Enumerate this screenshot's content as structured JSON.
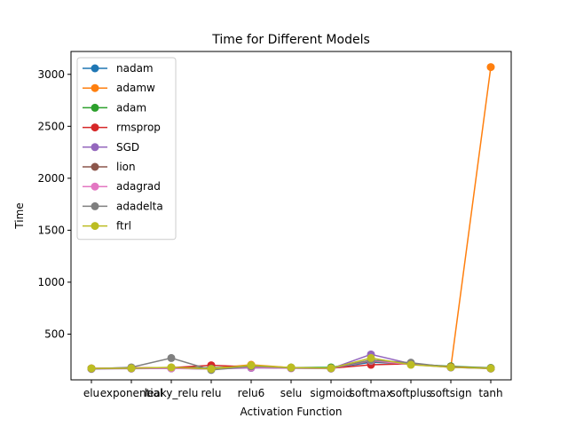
{
  "chart_data": {
    "type": "line",
    "title": "Time for Different Models",
    "xlabel": "Activation Function",
    "ylabel": "Time",
    "categories": [
      "elu",
      "exponential",
      "leaky_relu",
      "relu",
      "relu6",
      "selu",
      "sigmoid",
      "softmax",
      "softplus",
      "softsign",
      "tanh"
    ],
    "ylim": [
      60,
      3220
    ],
    "yticks": [
      500,
      1000,
      1500,
      2000,
      2500,
      3000
    ],
    "grid": false,
    "legend": "top-left",
    "series": [
      {
        "name": "nadam",
        "color": "#1f77b4",
        "values": [
          168,
          170,
          172,
          165,
          180,
          175,
          170,
          230,
          215,
          185,
          170
        ]
      },
      {
        "name": "adamw",
        "color": "#ff7f0e",
        "values": [
          170,
          172,
          175,
          170,
          205,
          178,
          172,
          250,
          210,
          182,
          3070
        ]
      },
      {
        "name": "adam",
        "color": "#2ca02c",
        "values": [
          168,
          172,
          178,
          175,
          185,
          178,
          180,
          240,
          212,
          190,
          175
        ]
      },
      {
        "name": "rmsprop",
        "color": "#d62728",
        "values": [
          170,
          175,
          178,
          200,
          185,
          175,
          172,
          205,
          215,
          185,
          172
        ]
      },
      {
        "name": "SGD",
        "color": "#9467bd",
        "values": [
          165,
          168,
          170,
          165,
          175,
          172,
          168,
          305,
          215,
          180,
          168
        ]
      },
      {
        "name": "lion",
        "color": "#8c564b",
        "values": [
          168,
          172,
          175,
          170,
          185,
          175,
          172,
          240,
          210,
          182,
          170
        ]
      },
      {
        "name": "adagrad",
        "color": "#e377c2",
        "values": [
          170,
          172,
          172,
          165,
          180,
          172,
          170,
          245,
          208,
          180,
          170
        ]
      },
      {
        "name": "adadelta",
        "color": "#7f7f7f",
        "values": [
          168,
          180,
          270,
          155,
          190,
          175,
          172,
          250,
          225,
          180,
          172
        ]
      },
      {
        "name": "ftrl",
        "color": "#bcbd22",
        "values": [
          170,
          172,
          180,
          165,
          200,
          178,
          172,
          270,
          205,
          182,
          170
        ]
      }
    ]
  }
}
